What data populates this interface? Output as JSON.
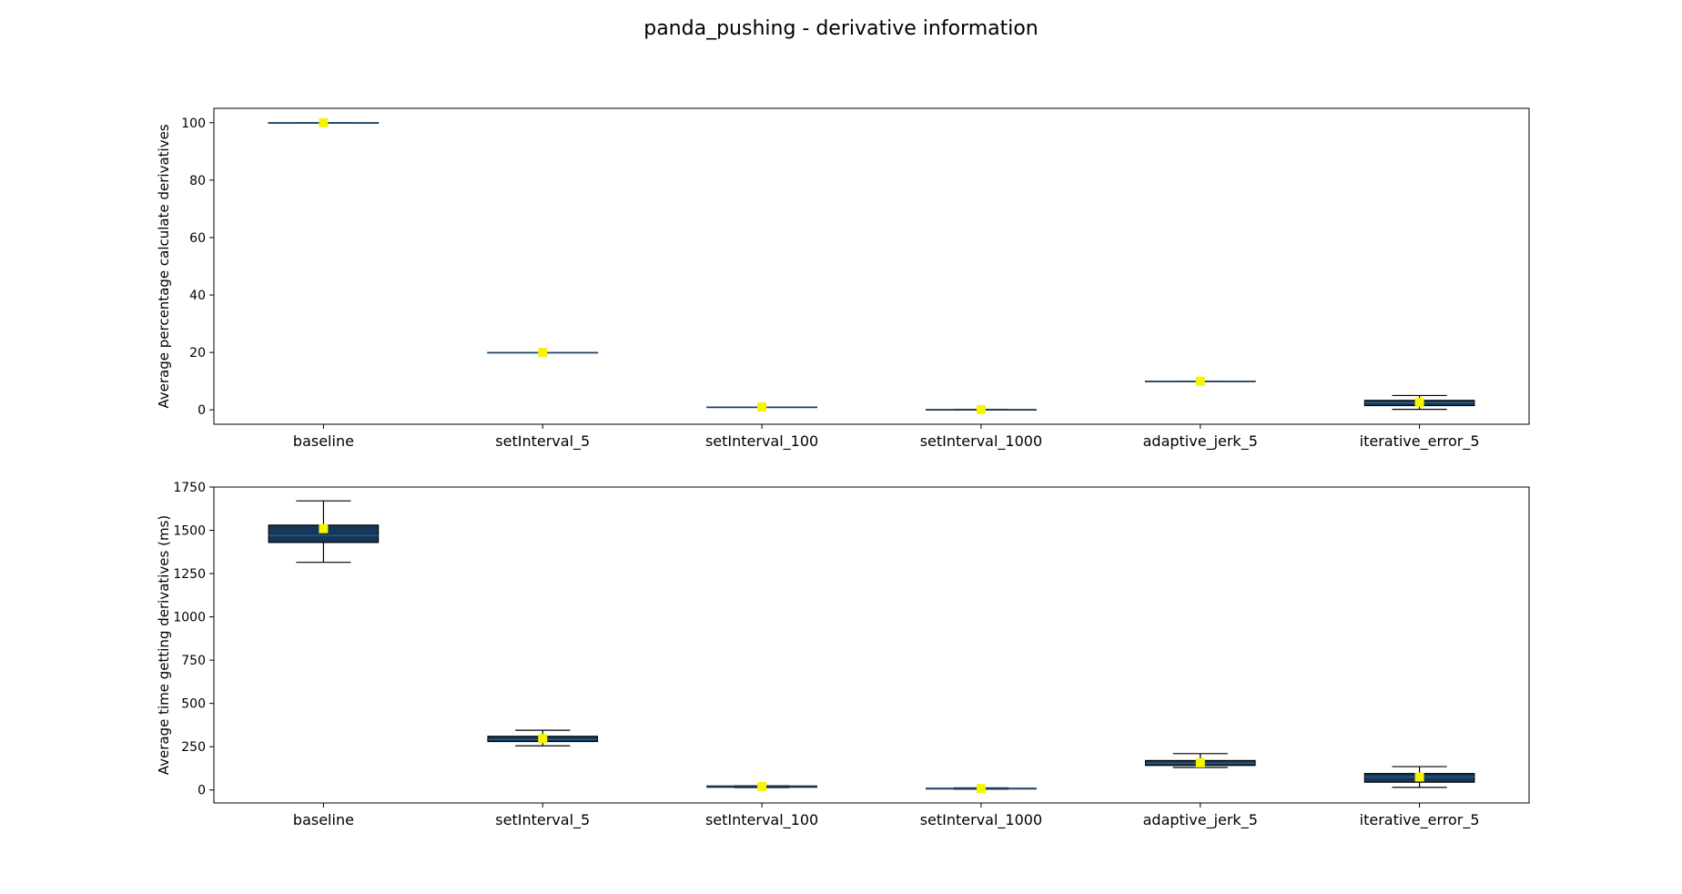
{
  "title": "panda_pushing - derivative information",
  "colors": {
    "box_fill": "#15385a",
    "mean_marker": "#f5f500",
    "line": "#000000"
  },
  "chart_data": [
    {
      "type": "box",
      "ylabel": "Average percentage calculate derivatives",
      "ylim": [
        -5,
        105
      ],
      "yticks": [
        0,
        20,
        40,
        60,
        80,
        100
      ],
      "categories": [
        "baseline",
        "setInterval_5",
        "setInterval_100",
        "setInterval_1000",
        "adaptive_jerk_5",
        "iterative_error_5"
      ],
      "boxes": [
        {
          "whisker_low": 100,
          "q1": 100,
          "median": 100,
          "q3": 100,
          "whisker_high": 100,
          "mean": 100
        },
        {
          "whisker_low": 20,
          "q1": 20,
          "median": 20,
          "q3": 20,
          "whisker_high": 20,
          "mean": 20
        },
        {
          "whisker_low": 1,
          "q1": 1,
          "median": 1,
          "q3": 1,
          "whisker_high": 1,
          "mean": 1
        },
        {
          "whisker_low": 0.1,
          "q1": 0.1,
          "median": 0.1,
          "q3": 0.1,
          "whisker_high": 0.1,
          "mean": 0.1
        },
        {
          "whisker_low": 10,
          "q1": 10,
          "median": 10,
          "q3": 10,
          "whisker_high": 10,
          "mean": 10
        },
        {
          "whisker_low": 0.2,
          "q1": 1.5,
          "median": 2.5,
          "q3": 3.3,
          "whisker_high": 5,
          "mean": 2.6
        }
      ]
    },
    {
      "type": "box",
      "ylabel": "Average time getting derivatives (ms)",
      "ylim": [
        -75,
        1750
      ],
      "yticks": [
        0,
        250,
        500,
        750,
        1000,
        1250,
        1500,
        1750
      ],
      "categories": [
        "baseline",
        "setInterval_5",
        "setInterval_100",
        "setInterval_1000",
        "adaptive_jerk_5",
        "iterative_error_5"
      ],
      "boxes": [
        {
          "whisker_low": 1315,
          "q1": 1430,
          "median": 1470,
          "q3": 1530,
          "whisker_high": 1670,
          "mean": 1510
        },
        {
          "whisker_low": 255,
          "q1": 280,
          "median": 292,
          "q3": 310,
          "whisker_high": 345,
          "mean": 297
        },
        {
          "whisker_low": 14,
          "q1": 16,
          "median": 20,
          "q3": 23,
          "whisker_high": 24,
          "mean": 20
        },
        {
          "whisker_low": 5,
          "q1": 6,
          "median": 8,
          "q3": 10,
          "whisker_high": 12,
          "mean": 8
        },
        {
          "whisker_low": 130,
          "q1": 142,
          "median": 155,
          "q3": 170,
          "whisker_high": 210,
          "mean": 157
        },
        {
          "whisker_low": 15,
          "q1": 45,
          "median": 75,
          "q3": 95,
          "whisker_high": 135,
          "mean": 75
        }
      ]
    }
  ]
}
